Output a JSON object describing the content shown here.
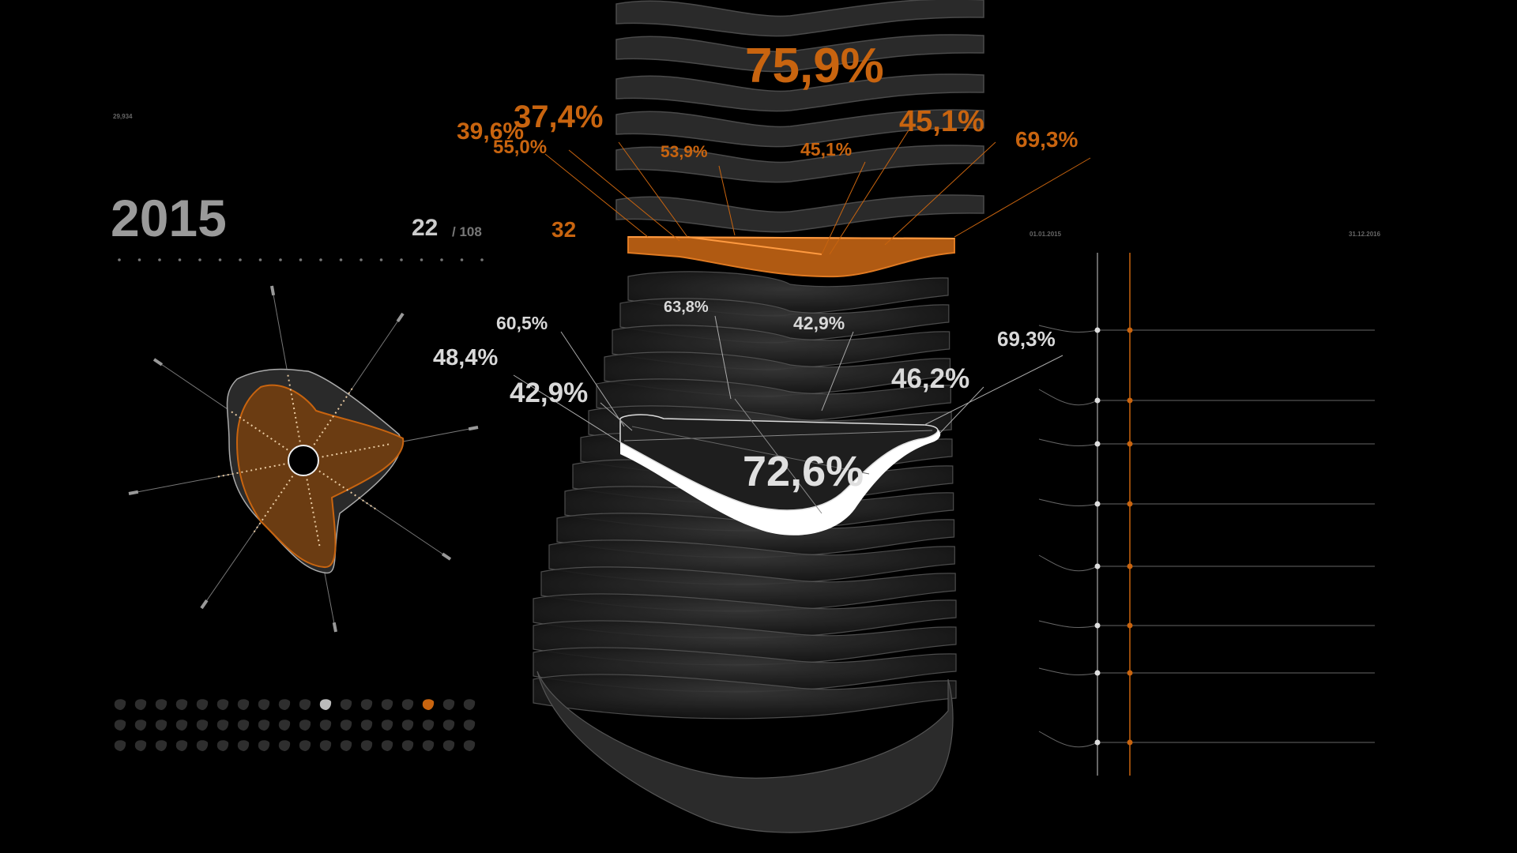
{
  "colors": {
    "accent": "#c8640f",
    "light": "#d9d9d9",
    "dim": "#8a8a8a",
    "background": "#000000"
  },
  "header": {
    "small_value": "29,934",
    "year": "2015",
    "current_index": "22",
    "total_separator": "/ 108",
    "highlight_index": "32"
  },
  "timeline": {
    "start_date": "01.01.2015",
    "end_date": "31.12.2016"
  },
  "chart_data": {
    "type": "3d-stacked-radial",
    "title": "2015",
    "highlight_layer": {
      "index": 32,
      "color": "#c8640f",
      "center_value": "75,9%",
      "labels": [
        "37,4%",
        "39,6%",
        "55,0%",
        "53,9%",
        "45,1%",
        "45,1%",
        "69,3%"
      ]
    },
    "selected_layer": {
      "index": 22,
      "color": "#ffffff",
      "center_value": "72,6%",
      "labels": [
        "60,5%",
        "48,4%",
        "42,9%",
        "63,8%",
        "42,9%",
        "69,3%",
        "46,2%"
      ]
    },
    "radar": {
      "axes": 8,
      "values": [
        0.62,
        0.55,
        0.75,
        0.6,
        0.5,
        0.72,
        0.58,
        0.6
      ]
    },
    "thumbnail_grid": {
      "rows": 3,
      "cols": 18,
      "selected_white": [
        0,
        10
      ],
      "selected_orange": [
        0,
        15
      ]
    },
    "line_panel": {
      "series_count": 8
    }
  }
}
